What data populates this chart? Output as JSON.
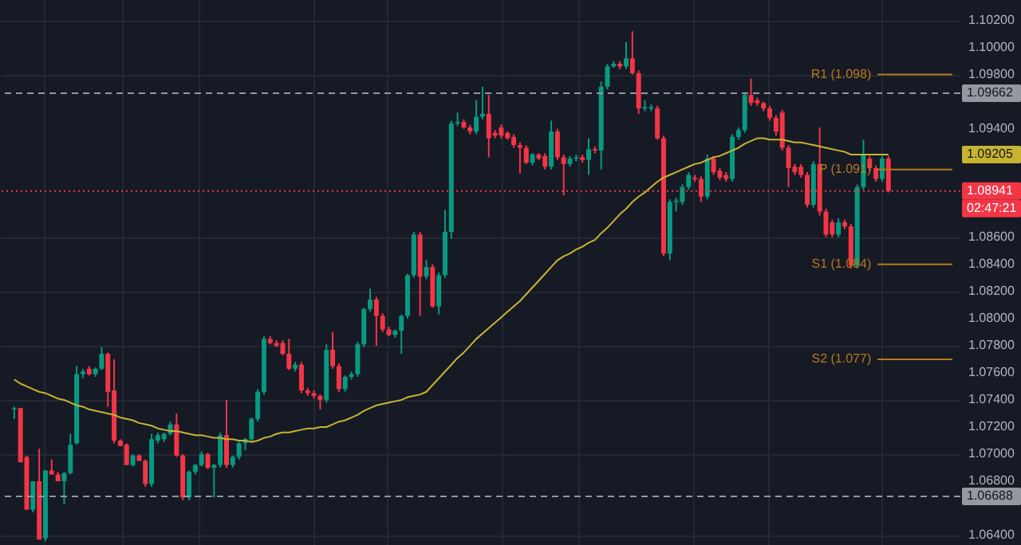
{
  "chart_data": {
    "type": "candlestick",
    "categories": [
      null,
      null,
      null,
      null,
      null,
      null,
      null,
      null,
      null,
      null,
      null,
      null,
      null,
      null,
      null,
      null,
      null,
      null,
      null,
      null,
      null,
      null,
      null,
      null,
      null,
      null,
      null,
      null,
      null,
      null,
      null,
      null,
      null,
      null,
      null,
      null,
      null,
      null,
      null,
      null,
      null,
      null,
      null,
      null,
      null,
      null,
      null,
      null,
      null,
      null,
      null,
      null,
      null,
      null,
      null,
      null,
      null,
      null,
      null,
      null,
      null,
      null,
      null,
      null,
      null,
      null,
      null,
      null,
      null,
      null,
      null,
      null,
      null,
      null,
      null,
      null,
      null,
      null,
      null,
      null,
      null,
      null,
      null,
      null,
      null,
      null,
      null,
      null,
      null,
      null,
      null,
      null,
      null,
      null,
      null,
      null,
      null,
      null,
      null,
      null,
      null,
      null,
      null,
      null,
      null,
      null,
      null,
      null,
      null,
      null,
      null,
      null,
      null,
      null,
      null,
      null,
      null,
      null,
      null,
      null,
      null,
      null,
      null,
      null,
      null,
      null,
      null,
      null,
      null,
      null,
      null,
      null,
      null,
      null,
      null,
      null,
      null,
      null,
      null,
      null,
      null
    ],
    "ohlc": [
      [
        1.0733,
        1.0735,
        1.0726,
        1.0734
      ],
      [
        1.0734,
        1.0734,
        1.0694,
        1.0694
      ],
      [
        1.0698,
        1.0699,
        1.0659,
        1.0659
      ],
      [
        1.0659,
        1.068,
        1.0657,
        1.068
      ],
      [
        1.068,
        1.0704,
        1.0637,
        1.0637
      ],
      [
        1.0638,
        1.0688,
        1.0636,
        1.0688
      ],
      [
        1.0688,
        1.0696,
        1.0685,
        1.0685
      ],
      [
        1.0685,
        1.0687,
        1.068,
        1.068
      ],
      [
        1.068,
        1.0687,
        1.0663,
        1.0686
      ],
      [
        1.0686,
        1.0715,
        1.0685,
        1.0707
      ],
      [
        1.0708,
        1.0765,
        1.0707,
        1.0759
      ],
      [
        1.0759,
        1.0763,
        1.0756,
        1.0761
      ],
      [
        1.0763,
        1.0765,
        1.0758,
        1.0759
      ],
      [
        1.0759,
        1.0764,
        1.0757,
        1.0763
      ],
      [
        1.0763,
        1.0779,
        1.0762,
        1.0774
      ],
      [
        1.0774,
        1.0775,
        1.0735,
        1.0746
      ],
      [
        1.0747,
        1.077,
        1.0708,
        1.071
      ],
      [
        1.071,
        1.0711,
        1.0706,
        1.0706
      ],
      [
        1.0707,
        1.0708,
        1.0692,
        1.0692
      ],
      [
        1.0692,
        1.07,
        1.0691,
        1.0699
      ],
      [
        1.0699,
        1.07,
        1.0695,
        1.0695
      ],
      [
        1.0695,
        1.0696,
        1.0676,
        1.0678
      ],
      [
        1.0678,
        1.0715,
        1.0676,
        1.0711
      ],
      [
        1.071,
        1.0716,
        1.0708,
        1.0714
      ],
      [
        1.0711,
        1.0716,
        1.0709,
        1.0715
      ],
      [
        1.0715,
        1.0724,
        1.0714,
        1.0722
      ],
      [
        1.0722,
        1.073,
        1.0698,
        1.0699
      ],
      [
        1.0699,
        1.07,
        1.0666,
        1.0668
      ],
      [
        1.0668,
        1.0688,
        1.0666,
        1.0687
      ],
      [
        1.0687,
        1.0693,
        1.0685,
        1.0692
      ],
      [
        1.0692,
        1.0702,
        1.0691,
        1.07
      ],
      [
        1.07,
        1.0701,
        1.0689,
        1.069
      ],
      [
        1.069,
        1.0693,
        1.0668,
        1.0692
      ],
      [
        1.0692,
        1.0716,
        1.069,
        1.0714
      ],
      [
        1.0714,
        1.074,
        1.069,
        1.0692
      ],
      [
        1.0692,
        1.0699,
        1.069,
        1.0698
      ],
      [
        1.0698,
        1.0709,
        1.0696,
        1.0708
      ],
      [
        1.0708,
        1.0712,
        1.0703,
        1.0711
      ],
      [
        1.0711,
        1.0727,
        1.0709,
        1.0726
      ],
      [
        1.0726,
        1.0748,
        1.0724,
        1.0746
      ],
      [
        1.0746,
        1.0787,
        1.0744,
        1.0785
      ],
      [
        1.0785,
        1.0787,
        1.0781,
        1.0782
      ],
      [
        1.0782,
        1.0784,
        1.0779,
        1.078
      ],
      [
        1.0782,
        1.0784,
        1.0773,
        1.0774
      ],
      [
        1.0774,
        1.0785,
        1.0762,
        1.0763
      ],
      [
        1.0763,
        1.0768,
        1.0761,
        1.0766
      ],
      [
        1.0766,
        1.0768,
        1.0745,
        1.0747
      ],
      [
        1.0747,
        1.0749,
        1.0743,
        1.0745
      ],
      [
        1.0745,
        1.0747,
        1.0741,
        1.0743
      ],
      [
        1.0743,
        1.0744,
        1.0733,
        1.074
      ],
      [
        1.074,
        1.0781,
        1.0738,
        1.0777
      ],
      [
        1.0777,
        1.079,
        1.0763,
        1.0765
      ],
      [
        1.0765,
        1.0767,
        1.0746,
        1.0748
      ],
      [
        1.0748,
        1.0758,
        1.0746,
        1.0757
      ],
      [
        1.0757,
        1.0761,
        1.0755,
        1.0759
      ],
      [
        1.0759,
        1.0783,
        1.0757,
        1.0781
      ],
      [
        1.0781,
        1.0808,
        1.0779,
        1.0807
      ],
      [
        1.0807,
        1.0822,
        1.0805,
        1.0814
      ],
      [
        1.0814,
        1.0816,
        1.078,
        1.0802
      ],
      [
        1.0802,
        1.0804,
        1.079,
        1.0792
      ],
      [
        1.0792,
        1.0794,
        1.0787,
        1.0788
      ],
      [
        1.0788,
        1.0792,
        1.0786,
        1.0791
      ],
      [
        1.0791,
        1.0803,
        1.0774,
        1.0802
      ],
      [
        1.0802,
        1.0833,
        1.08,
        1.0832
      ],
      [
        1.0832,
        1.0864,
        1.083,
        1.0862
      ],
      [
        1.0862,
        1.0864,
        1.0802,
        1.0831
      ],
      [
        1.0831,
        1.0843,
        1.0829,
        1.0838
      ],
      [
        1.0838,
        1.084,
        1.0808,
        1.0809
      ],
      [
        1.0809,
        1.0834,
        1.0803,
        1.0832
      ],
      [
        1.0832,
        1.088,
        1.083,
        1.0864
      ],
      [
        1.0864,
        1.0946,
        1.0859,
        1.0944
      ],
      [
        1.0944,
        1.0952,
        1.0942,
        1.0945
      ],
      [
        1.0945,
        1.0947,
        1.094,
        1.0941
      ],
      [
        1.0941,
        1.0943,
        1.0936,
        1.0938
      ],
      [
        1.0938,
        1.0961,
        1.0936,
        1.0949
      ],
      [
        1.0949,
        1.0971,
        1.0947,
        1.0951
      ],
      [
        1.0951,
        1.0965,
        1.0919,
        1.0933
      ],
      [
        1.0937,
        1.0939,
        1.0933,
        1.0935
      ],
      [
        1.0941,
        1.0943,
        1.0933,
        1.0935
      ],
      [
        1.0937,
        1.0938,
        1.0932,
        1.0933
      ],
      [
        1.0934,
        1.0936,
        1.0926,
        1.0928
      ],
      [
        1.0928,
        1.093,
        1.0907,
        1.0926
      ],
      [
        1.0926,
        1.0928,
        1.0914,
        1.0915
      ],
      [
        1.0915,
        1.0922,
        1.0913,
        1.0921
      ],
      [
        1.0921,
        1.0922,
        1.0917,
        1.0918
      ],
      [
        1.092,
        1.0922,
        1.091,
        1.0912
      ],
      [
        1.0912,
        1.0946,
        1.091,
        1.0938
      ],
      [
        1.0938,
        1.094,
        1.0917,
        1.0919
      ],
      [
        1.0919,
        1.0921,
        1.0891,
        1.0914
      ],
      [
        1.0914,
        1.092,
        1.0912,
        1.0918
      ],
      [
        1.0918,
        1.0921,
        1.0916,
        1.0919
      ],
      [
        1.0919,
        1.0921,
        1.0915,
        1.0917
      ],
      [
        1.0917,
        1.0933,
        1.0906,
        1.0925
      ],
      [
        1.0925,
        1.0927,
        1.0922,
        1.0924
      ],
      [
        1.0924,
        1.0975,
        1.091,
        1.0971
      ],
      [
        1.0971,
        1.0988,
        1.0969,
        1.0986
      ],
      [
        1.0986,
        1.099,
        1.0985,
        1.0988
      ],
      [
        1.0988,
        1.099,
        1.0984,
        1.0986
      ],
      [
        1.0986,
        1.1004,
        1.0984,
        1.0992
      ],
      [
        1.0992,
        1.1012,
        1.098,
        1.0981
      ],
      [
        1.0981,
        1.0983,
        1.0951,
        1.0955
      ],
      [
        1.0955,
        1.0961,
        1.0953,
        1.0956
      ],
      [
        1.0955,
        1.0958,
        1.0953,
        1.0956
      ],
      [
        1.0955,
        1.0957,
        1.0932,
        1.0933
      ],
      [
        1.0933,
        1.0935,
        1.0846,
        1.0848
      ],
      [
        1.0848,
        1.0888,
        1.0843,
        1.0886
      ],
      [
        1.0886,
        1.0889,
        1.0879,
        1.0887
      ],
      [
        1.0886,
        1.0899,
        1.0884,
        1.0897
      ],
      [
        1.0897,
        1.0908,
        1.0895,
        1.0906
      ],
      [
        1.0904,
        1.0906,
        1.0901,
        1.0903
      ],
      [
        1.0903,
        1.0905,
        1.0886,
        1.089
      ],
      [
        1.089,
        1.0921,
        1.0888,
        1.0918
      ],
      [
        1.0918,
        1.092,
        1.0906,
        1.0908
      ],
      [
        1.0909,
        1.0911,
        1.0902,
        1.0904
      ],
      [
        1.0906,
        1.0908,
        1.0901,
        1.0903
      ],
      [
        1.0903,
        1.0936,
        1.0901,
        1.0934
      ],
      [
        1.0934,
        1.0941,
        1.0932,
        1.0939
      ],
      [
        1.0939,
        1.0967,
        1.0937,
        1.0965
      ],
      [
        1.0965,
        1.0977,
        1.0957,
        1.0959
      ],
      [
        1.0961,
        1.0963,
        1.0957,
        1.0959
      ],
      [
        1.0959,
        1.096,
        1.0953,
        1.0955
      ],
      [
        1.0955,
        1.0957,
        1.0946,
        1.0948
      ],
      [
        1.0948,
        1.095,
        1.0935,
        1.0938
      ],
      [
        1.0952,
        1.0954,
        1.0924,
        1.0926
      ],
      [
        1.0926,
        1.0928,
        1.0897,
        1.0911
      ],
      [
        1.0912,
        1.0914,
        1.0906,
        1.0908
      ],
      [
        1.0912,
        1.0914,
        1.0904,
        1.0906
      ],
      [
        1.0906,
        1.0908,
        1.0882,
        1.0884
      ],
      [
        1.0884,
        1.0916,
        1.0882,
        1.0914
      ],
      [
        1.0914,
        1.0941,
        1.0876,
        1.0879
      ],
      [
        1.0879,
        1.0881,
        1.086,
        1.0862
      ],
      [
        1.0871,
        1.0873,
        1.086,
        1.0862
      ],
      [
        1.0862,
        1.0874,
        1.086,
        1.0871
      ],
      [
        1.0871,
        1.0873,
        1.0866,
        1.0868
      ],
      [
        1.0868,
        1.087,
        1.0837,
        1.0839
      ],
      [
        1.0839,
        1.0899,
        1.0837,
        1.0897
      ],
      [
        1.0897,
        1.0932,
        1.0895,
        1.0921
      ],
      [
        1.0918,
        1.092,
        1.0909,
        1.0911
      ],
      [
        1.0911,
        1.0913,
        1.0901,
        1.0903
      ],
      [
        1.0903,
        1.092,
        1.0901,
        1.0918
      ],
      [
        1.0918,
        1.092,
        1.0893,
        1.0894
      ]
    ],
    "colors": [
      "#089981",
      "#f23645",
      "#f23645",
      "#089981",
      "#f23645",
      "#089981",
      "#f23645",
      "#f23645",
      "#089981",
      "#089981",
      "#089981",
      "#089981",
      "#f23645",
      "#089981",
      "#089981",
      "#f23645",
      "#f23645",
      "#f23645",
      "#f23645",
      "#089981",
      "#f23645",
      "#f23645",
      "#089981",
      "#089981",
      "#089981",
      "#089981",
      "#f23645",
      "#f23645",
      "#089981",
      "#089981",
      "#089981",
      "#f23645",
      "#089981",
      "#089981",
      "#f23645",
      "#089981",
      "#089981",
      "#089981",
      "#089981",
      "#089981",
      "#089981",
      "#f23645",
      "#f23645",
      "#f23645",
      "#f23645",
      "#089981",
      "#f23645",
      "#f23645",
      "#f23645",
      "#f23645",
      "#089981",
      "#f23645",
      "#f23645",
      "#089981",
      "#089981",
      "#089981",
      "#089981",
      "#089981",
      "#f23645",
      "#f23645",
      "#f23645",
      "#089981",
      "#089981",
      "#089981",
      "#089981",
      "#f23645",
      "#089981",
      "#f23645",
      "#089981",
      "#089981",
      "#089981",
      "#089981",
      "#f23645",
      "#f23645",
      "#089981",
      "#089981",
      "#f23645",
      "#f23645",
      "#f23645",
      "#f23645",
      "#f23645",
      "#f23645",
      "#f23645",
      "#089981",
      "#f23645",
      "#f23645",
      "#089981",
      "#f23645",
      "#f23645",
      "#089981",
      "#089981",
      "#f23645",
      "#089981",
      "#f23645",
      "#089981",
      "#089981",
      "#089981",
      "#f23645",
      "#089981",
      "#f23645",
      "#f23645",
      "#089981",
      "#089981",
      "#f23645",
      "#f23645",
      "#089981",
      "#089981",
      "#089981",
      "#089981",
      "#f23645",
      "#f23645",
      "#089981",
      "#f23645",
      "#f23645",
      "#f23645",
      "#089981",
      "#089981",
      "#089981",
      "#f23645",
      "#f23645",
      "#f23645",
      "#f23645",
      "#f23645",
      "#f23645",
      "#f23645",
      "#f23645",
      "#f23645",
      "#f23645",
      "#089981",
      "#f23645",
      "#f23645",
      "#f23645",
      "#089981",
      "#f23645",
      "#f23645",
      "#089981",
      "#089981",
      "#f23645",
      "#f23645",
      "#089981",
      "#f23645"
    ],
    "series": [
      {
        "type": "line",
        "color": "#c8b431",
        "values": [
          1.0755,
          1.0752,
          1.075,
          1.0748,
          1.0746,
          1.0745,
          1.0743,
          1.0741,
          1.074,
          1.0738,
          1.0736,
          1.0735,
          1.0733,
          1.0732,
          1.0731,
          1.073,
          1.0729,
          1.0727,
          1.0726,
          1.0725,
          1.0723,
          1.0722,
          1.0721,
          1.0719,
          1.0718,
          1.0717,
          1.0717,
          1.0716,
          1.0715,
          1.0714,
          1.0714,
          1.0713,
          1.0712,
          1.0712,
          1.0711,
          1.0711,
          1.071,
          1.071,
          1.0709,
          1.071,
          1.0712,
          1.0713,
          1.0715,
          1.0716,
          1.0716,
          1.0717,
          1.0718,
          1.0719,
          1.0719,
          1.072,
          1.072,
          1.0722,
          1.0724,
          1.0725,
          1.0727,
          1.0729,
          1.0732,
          1.0734,
          1.0736,
          1.0737,
          1.0738,
          1.0739,
          1.074,
          1.0742,
          1.0743,
          1.0744,
          1.0746,
          1.0751,
          1.0756,
          1.0761,
          1.0766,
          1.0771,
          1.0775,
          1.078,
          1.0785,
          1.0789,
          1.0793,
          1.0797,
          1.0801,
          1.0805,
          1.0809,
          1.0813,
          1.0818,
          1.0823,
          1.0828,
          1.0833,
          1.0838,
          1.0843,
          1.0846,
          1.0848,
          1.0851,
          1.0853,
          1.0856,
          1.0858,
          1.0863,
          1.0867,
          1.0872,
          1.0877,
          1.0881,
          1.0886,
          1.089,
          1.0893,
          1.0897,
          1.0901,
          1.0904,
          1.0906,
          1.0908,
          1.091,
          1.0912,
          1.0914,
          1.0915,
          1.0917,
          1.0919,
          1.092,
          1.0922,
          1.0924,
          1.0926,
          1.0929,
          1.0931,
          1.0933,
          1.0933,
          1.0932,
          1.0932,
          1.0932,
          1.0931,
          1.093,
          1.093,
          1.0929,
          1.0928,
          1.0927,
          1.0926,
          1.0925,
          1.0924,
          1.0923,
          1.0921,
          1.0921,
          1.0921,
          1.0921,
          1.0921,
          1.0921,
          1.0921
        ]
      }
    ],
    "ylim": [
      1.0633,
      1.1035
    ],
    "yticks": [
      {
        "value": 1.064,
        "label": "1.06400"
      },
      {
        "value": 1.068,
        "label": "1.06800"
      },
      {
        "value": 1.07,
        "label": "1.07000"
      },
      {
        "value": 1.072,
        "label": "1.07200"
      },
      {
        "value": 1.074,
        "label": "1.07400"
      },
      {
        "value": 1.076,
        "label": "1.07600"
      },
      {
        "value": 1.078,
        "label": "1.07800"
      },
      {
        "value": 1.08,
        "label": "1.08000"
      },
      {
        "value": 1.082,
        "label": "1.08200"
      },
      {
        "value": 1.084,
        "label": "1.08400"
      },
      {
        "value": 1.086,
        "label": "1.08600"
      },
      {
        "value": 1.094,
        "label": "1.09400"
      },
      {
        "value": 1.098,
        "label": "1.09800"
      },
      {
        "value": 1.1,
        "label": "1.10000"
      },
      {
        "value": 1.102,
        "label": "1.10200"
      }
    ],
    "tick_labels": "y",
    "grid": true,
    "line_style": "solid",
    "marker": "none",
    "ref_lines": [
      {
        "axis": "y",
        "value": 1.09662,
        "label": "1.09662",
        "color": "#9598a1",
        "line_style": "dashed"
      },
      {
        "axis": "y",
        "value": 1.06688,
        "label": "1.06688",
        "color": "#9598a1",
        "line_style": "dashed"
      },
      {
        "axis": "y",
        "value": 1.08941,
        "label": "1.08941",
        "color": "#f23645",
        "line_style": "dotted"
      },
      {
        "axis": "y",
        "value": 1.098,
        "label": "R1 (1.098)",
        "color": "#b8791c",
        "line_style": "solid"
      },
      {
        "axis": "y",
        "value": 1.091,
        "label": "P (1.091)",
        "color": "#b8791c",
        "line_style": "solid"
      },
      {
        "axis": "y",
        "value": 1.084,
        "label": "S1 (1.084)",
        "color": "#b8791c",
        "line_style": "solid"
      },
      {
        "axis": "y",
        "value": 1.077,
        "label": "S2 (1.077)",
        "color": "#b8791c",
        "line_style": "solid"
      }
    ],
    "annotations": [
      "1.09205",
      "02:47:21"
    ]
  }
}
